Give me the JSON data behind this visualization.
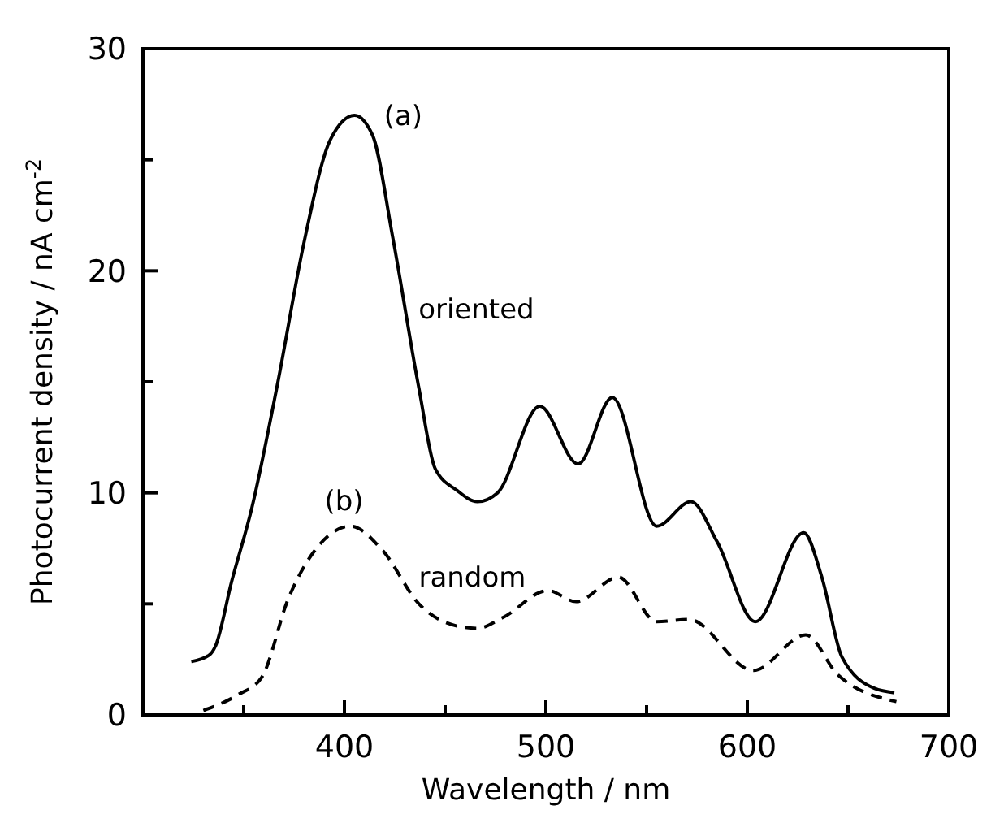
{
  "chart_data": {
    "type": "line",
    "xlabel": "Wavelength / nm",
    "ylabel": "Photocurrent density / nA cm$^{-2}$",
    "xlim": [
      300,
      700
    ],
    "ylim": [
      0,
      30
    ],
    "xticks": [
      {
        "value": 350,
        "label": null
      },
      400,
      {
        "value": 450,
        "label": null
      },
      500,
      {
        "value": 550,
        "label": null
      },
      600,
      {
        "value": 650,
        "label": null
      },
      700
    ],
    "yticks": [
      0,
      {
        "value": 5,
        "label": null
      },
      10,
      {
        "value": 15,
        "label": null
      },
      20,
      {
        "value": 25,
        "label": null
      },
      30
    ],
    "grid": false,
    "marker": "none",
    "series": [
      {
        "name": "oriented",
        "color": "#000000",
        "line_style": "solid",
        "x": [
          324,
          333,
          336,
          344,
          354,
          367,
          380,
          393,
          405,
          414,
          424,
          437,
          445,
          456,
          466,
          476,
          497,
          516,
          533,
          555,
          572,
          585,
          604,
          628,
          637,
          647,
          663,
          673
        ],
        "values": [
          2.4,
          2.7,
          3.1,
          6.0,
          9.3,
          15,
          21.3,
          25.9,
          27,
          26.1,
          21.5,
          14.7,
          11.1,
          10.1,
          9.6,
          10,
          13.9,
          11.3,
          14.3,
          8.5,
          9.6,
          7.8,
          4.2,
          8.2,
          6.2,
          2.6,
          1.2,
          1.0
        ]
      },
      {
        "name": "random",
        "color": "#000000",
        "line_style": "dashed",
        "x": [
          330,
          347,
          359,
          372,
          388,
          403,
          419,
          437,
          456,
          466,
          479,
          501,
          515,
          536,
          555,
          571,
          603,
          629,
          645,
          674
        ],
        "values": [
          0.2,
          0.9,
          1.7,
          5.2,
          7.7,
          8.5,
          7.4,
          5.0,
          4.0,
          3.9,
          4.4,
          5.6,
          5.1,
          6.2,
          4.2,
          4.3,
          2.0,
          3.6,
          1.8,
          0.6
        ]
      }
    ],
    "annotations": [
      "(a)",
      "(b)"
    ]
  }
}
